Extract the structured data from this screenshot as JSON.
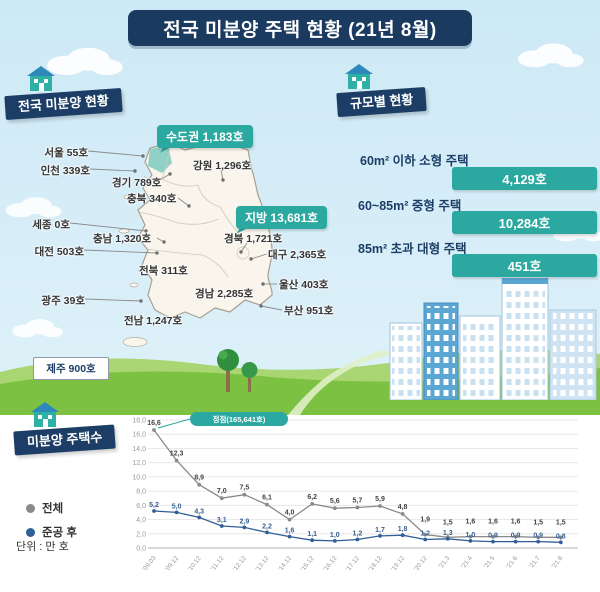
{
  "title": "전국 미분양 주택 현황 (21년 8월)",
  "colors": {
    "navy": "#1c3e66",
    "teal": "#2ba8a0",
    "sky": "#cde9f6",
    "grass": "#7bbf3e",
    "line_total": "#8a8a8a",
    "line_after_completion": "#2f5f96"
  },
  "map_section": {
    "ribbon": "전국 미분양 현황",
    "badge_capital": "수도권 1,183호",
    "badge_regional": "지방 13,681호",
    "regions": [
      "서울 55호",
      "인천 339호",
      "경기 789호",
      "강원 1,296호",
      "충북 340호",
      "세종 0호",
      "충남 1,320호",
      "대전 503호",
      "경북 1,721호",
      "대구 2,365호",
      "전북 311호",
      "울산 403호",
      "경남 2,285호",
      "광주 39호",
      "전남 1,247호",
      "부산 951호",
      "제주 900호"
    ]
  },
  "size_section": {
    "ribbon": "규모별 현황",
    "rows": [
      {
        "label": "60m² 이하 소형 주택",
        "value": "4,129호"
      },
      {
        "label": "60~85m² 중형 주택",
        "value": "10,284호"
      },
      {
        "label": "85m² 초과 대형 주택",
        "value": "451호"
      }
    ]
  },
  "chart_section": {
    "ribbon": "미분양 주택수",
    "unit": "단위 : 만 호"
  },
  "chart_data": {
    "type": "line",
    "title": "미분양 주택수",
    "unit_label": "단위 : 만 호",
    "categories": [
      "'09.03",
      "'09.12",
      "'10.12",
      "'11.12",
      "'12.12",
      "'13.12",
      "'14.12",
      "'15.12",
      "'16.12",
      "'17.12",
      "'18.12",
      "'19.12",
      "'20.12",
      "'21.3",
      "'21.4",
      "'21.5",
      "'21.6",
      "'21.7",
      "'21.8"
    ],
    "series": [
      {
        "name": "전체",
        "color": "#8a8a8a",
        "values": [
          16.6,
          12.3,
          8.9,
          7.0,
          7.5,
          6.1,
          4.0,
          6.2,
          5.6,
          5.7,
          5.9,
          4.8,
          1.9,
          1.5,
          1.6,
          1.6,
          1.6,
          1.5,
          1.5
        ]
      },
      {
        "name": "준공 후",
        "color": "#2f5f96",
        "values": [
          5.2,
          5.0,
          4.3,
          3.1,
          2.9,
          2.2,
          1.6,
          1.1,
          1.0,
          1.2,
          1.7,
          1.8,
          1.2,
          1.3,
          1.0,
          0.9,
          0.9,
          0.9,
          0.8
        ]
      }
    ],
    "ylim": [
      0,
      18
    ],
    "ytick_step": 2,
    "grid": true,
    "legend_position": "left",
    "annotation": {
      "text": "정점(165,641호)",
      "target_index": 0
    },
    "decimal_separator": ","
  }
}
